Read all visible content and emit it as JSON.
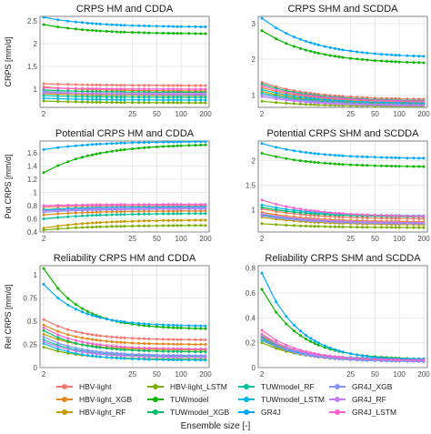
{
  "palette": {
    "HBV-light": "#f8766d",
    "HBV-light_XGB": "#e7861b",
    "HBV-light_RF": "#c49a00",
    "HBV-light_LSTM": "#7cae00",
    "TUWmodel": "#0cb702",
    "TUWmodel_XGB": "#00be67",
    "TUWmodel_RF": "#00c19a",
    "TUWmodel_LSTM": "#00b8e7",
    "GR4J": "#00a9ff",
    "GR4J_XGB": "#8494ff",
    "GR4J_RF": "#c77cff",
    "GR4J_LSTM": "#ff61cc"
  },
  "legend": {
    "items": [
      "HBV-light",
      "HBV-light_XGB",
      "HBV-light_RF",
      "HBV-light_LSTM",
      "TUWmodel",
      "TUWmodel_XGB",
      "TUWmodel_RF",
      "TUWmodel_LSTM",
      "GR4J",
      "GR4J_XGB",
      "GR4J_RF",
      "GR4J_LSTM"
    ],
    "columns": 4,
    "rows": 3
  },
  "xlabel": "Ensemble size [-]",
  "chart_data": [
    {
      "type": "line",
      "title": "CRPS HM and CDDA",
      "ylabel": "CRPS [mm/d]",
      "xscale": "log",
      "xlim": [
        2,
        200
      ],
      "xticks": [
        2,
        25,
        50,
        100,
        200
      ],
      "ylim": [
        0.6,
        2.6
      ],
      "yticks": [
        1.0,
        1.5,
        2.0,
        2.5
      ],
      "grid": true,
      "series": [
        {
          "name": "HBV-light",
          "start": 1.12,
          "end": 1.08
        },
        {
          "name": "HBV-light_XGB",
          "start": 1.05,
          "end": 0.96
        },
        {
          "name": "HBV-light_RF",
          "start": 0.9,
          "end": 0.86
        },
        {
          "name": "HBV-light_LSTM",
          "start": 0.74,
          "end": 0.7
        },
        {
          "name": "TUWmodel",
          "start": 2.42,
          "end": 2.22
        },
        {
          "name": "TUWmodel_XGB",
          "start": 0.98,
          "end": 0.93
        },
        {
          "name": "TUWmodel_RF",
          "start": 0.86,
          "end": 0.82
        },
        {
          "name": "TUWmodel_LSTM",
          "start": 0.8,
          "end": 0.76
        },
        {
          "name": "GR4J",
          "start": 2.58,
          "end": 2.37
        },
        {
          "name": "GR4J_XGB",
          "start": 0.95,
          "end": 0.88
        },
        {
          "name": "GR4J_RF",
          "start": 0.92,
          "end": 0.9
        },
        {
          "name": "GR4J_LSTM",
          "start": 1.03,
          "end": 1.0
        }
      ]
    },
    {
      "type": "line",
      "title": "CRPS SHM and SCDDA",
      "ylabel": "",
      "xscale": "log",
      "xlim": [
        2,
        200
      ],
      "xticks": [
        2,
        25,
        50,
        100,
        200
      ],
      "ylim": [
        0.65,
        3.2
      ],
      "yticks": [
        1,
        2,
        3
      ],
      "grid": true,
      "series": [
        {
          "name": "HBV-light",
          "start": 1.35,
          "end": 0.88
        },
        {
          "name": "HBV-light_XGB",
          "start": 1.2,
          "end": 0.8
        },
        {
          "name": "HBV-light_RF",
          "start": 1.1,
          "end": 0.75
        },
        {
          "name": "HBV-light_LSTM",
          "start": 0.82,
          "end": 0.68
        },
        {
          "name": "TUWmodel",
          "start": 2.8,
          "end": 1.9
        },
        {
          "name": "TUWmodel_XGB",
          "start": 1.3,
          "end": 0.84
        },
        {
          "name": "TUWmodel_RF",
          "start": 1.05,
          "end": 0.73
        },
        {
          "name": "TUWmodel_LSTM",
          "start": 1.15,
          "end": 0.77
        },
        {
          "name": "GR4J",
          "start": 3.15,
          "end": 2.08
        },
        {
          "name": "GR4J_XGB",
          "start": 1.0,
          "end": 0.72
        },
        {
          "name": "GR4J_RF",
          "start": 0.95,
          "end": 0.7
        },
        {
          "name": "GR4J_LSTM",
          "start": 1.25,
          "end": 0.82
        }
      ]
    },
    {
      "type": "line",
      "title": "Potential CRPS HM and CDDA",
      "ylabel": "Pot CRPS [mm/d]",
      "xscale": "log",
      "xlim": [
        2,
        200
      ],
      "xticks": [
        2,
        25,
        50,
        100,
        200
      ],
      "ylim": [
        0.4,
        1.78
      ],
      "yticks": [
        0.4,
        0.6,
        0.8,
        1.0,
        1.2,
        1.4,
        1.6
      ],
      "grid": true,
      "series": [
        {
          "name": "HBV-light",
          "start": 0.78,
          "end": 0.8
        },
        {
          "name": "HBV-light_XGB",
          "start": 0.66,
          "end": 0.72
        },
        {
          "name": "HBV-light_RF",
          "start": 0.46,
          "end": 0.58
        },
        {
          "name": "HBV-light_LSTM",
          "start": 0.43,
          "end": 0.5
        },
        {
          "name": "TUWmodel",
          "start": 1.3,
          "end": 1.72
        },
        {
          "name": "TUWmodel_XGB",
          "start": 0.74,
          "end": 0.78
        },
        {
          "name": "TUWmodel_RF",
          "start": 0.6,
          "end": 0.68
        },
        {
          "name": "TUWmodel_LSTM",
          "start": 0.73,
          "end": 0.78
        },
        {
          "name": "GR4J",
          "start": 1.65,
          "end": 1.77
        },
        {
          "name": "GR4J_XGB",
          "start": 0.7,
          "end": 0.75
        },
        {
          "name": "GR4J_RF",
          "start": 0.72,
          "end": 0.76
        },
        {
          "name": "GR4J_LSTM",
          "start": 0.8,
          "end": 0.82
        }
      ]
    },
    {
      "type": "line",
      "title": "Potential CRPS SHM and SCDDA",
      "ylabel": "",
      "xscale": "log",
      "xlim": [
        2,
        200
      ],
      "xticks": [
        2,
        25,
        50,
        100,
        200
      ],
      "ylim": [
        0.55,
        2.4
      ],
      "yticks": [
        1.0,
        1.5,
        2.0
      ],
      "grid": true,
      "series": [
        {
          "name": "HBV-light",
          "start": 1.02,
          "end": 0.82
        },
        {
          "name": "HBV-light_XGB",
          "start": 0.95,
          "end": 0.76
        },
        {
          "name": "HBV-light_RF",
          "start": 0.85,
          "end": 0.7
        },
        {
          "name": "HBV-light_LSTM",
          "start": 0.72,
          "end": 0.64
        },
        {
          "name": "TUWmodel",
          "start": 2.15,
          "end": 1.88
        },
        {
          "name": "TUWmodel_XGB",
          "start": 1.05,
          "end": 0.86
        },
        {
          "name": "TUWmodel_RF",
          "start": 0.9,
          "end": 0.73
        },
        {
          "name": "TUWmodel_LSTM",
          "start": 1.1,
          "end": 0.88
        },
        {
          "name": "GR4J",
          "start": 2.35,
          "end": 2.05
        },
        {
          "name": "GR4J_XGB",
          "start": 0.88,
          "end": 0.72
        },
        {
          "name": "GR4J_RF",
          "start": 0.92,
          "end": 0.74
        },
        {
          "name": "GR4J_LSTM",
          "start": 1.2,
          "end": 0.87
        }
      ]
    },
    {
      "type": "line",
      "title": "Reliability CRPS HM and CDDA",
      "ylabel": "Rel CRPS [mm/d]",
      "xscale": "log",
      "xlim": [
        2,
        200
      ],
      "xticks": [
        2,
        25,
        50,
        100,
        200
      ],
      "ylim": [
        0.0,
        1.1
      ],
      "yticks": [
        0.0,
        0.25,
        0.5,
        0.75,
        1.0
      ],
      "grid": true,
      "series": [
        {
          "name": "HBV-light",
          "start": 0.52,
          "end": 0.3
        },
        {
          "name": "HBV-light_XGB",
          "start": 0.46,
          "end": 0.25
        },
        {
          "name": "HBV-light_RF",
          "start": 0.36,
          "end": 0.19
        },
        {
          "name": "HBV-light_LSTM",
          "start": 0.22,
          "end": 0.09
        },
        {
          "name": "TUWmodel",
          "start": 1.07,
          "end": 0.42
        },
        {
          "name": "TUWmodel_XGB",
          "start": 0.4,
          "end": 0.17
        },
        {
          "name": "TUWmodel_RF",
          "start": 0.3,
          "end": 0.12
        },
        {
          "name": "TUWmodel_LSTM",
          "start": 0.26,
          "end": 0.08
        },
        {
          "name": "GR4J",
          "start": 0.9,
          "end": 0.45
        },
        {
          "name": "GR4J_XGB",
          "start": 0.33,
          "end": 0.13
        },
        {
          "name": "GR4J_RF",
          "start": 0.28,
          "end": 0.11
        },
        {
          "name": "GR4J_LSTM",
          "start": 0.43,
          "end": 0.2
        }
      ]
    },
    {
      "type": "line",
      "title": "Reliability CRPS SHM and SCDDA",
      "ylabel": "",
      "xscale": "log",
      "xlim": [
        2,
        200
      ],
      "xticks": [
        2,
        25,
        50,
        100,
        200
      ],
      "ylim": [
        0.0,
        0.82
      ],
      "yticks": [
        0.0,
        0.2,
        0.4,
        0.6,
        0.8
      ],
      "grid": true,
      "series": [
        {
          "name": "HBV-light",
          "start": 0.27,
          "end": 0.06
        },
        {
          "name": "HBV-light_XGB",
          "start": 0.25,
          "end": 0.05
        },
        {
          "name": "HBV-light_RF",
          "start": 0.22,
          "end": 0.05
        },
        {
          "name": "HBV-light_LSTM",
          "start": 0.2,
          "end": 0.06
        },
        {
          "name": "TUWmodel",
          "start": 0.63,
          "end": 0.07
        },
        {
          "name": "TUWmodel_XGB",
          "start": 0.26,
          "end": 0.06
        },
        {
          "name": "TUWmodel_RF",
          "start": 0.24,
          "end": 0.05
        },
        {
          "name": "TUWmodel_LSTM",
          "start": 0.22,
          "end": 0.07
        },
        {
          "name": "GR4J",
          "start": 0.76,
          "end": 0.06
        },
        {
          "name": "GR4J_XGB",
          "start": 0.23,
          "end": 0.05
        },
        {
          "name": "GR4J_RF",
          "start": 0.26,
          "end": 0.06
        },
        {
          "name": "GR4J_LSTM",
          "start": 0.3,
          "end": 0.06
        }
      ]
    }
  ]
}
